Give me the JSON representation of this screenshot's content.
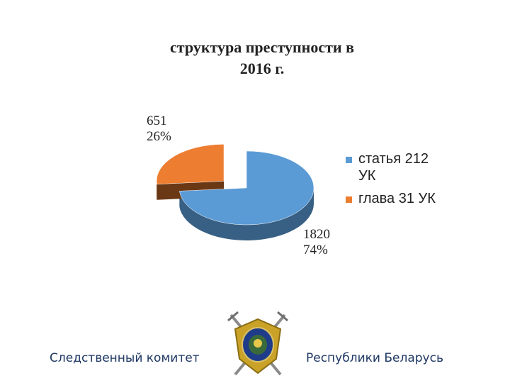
{
  "chart_data": {
    "type": "pie",
    "title": "структура преступности в\n2016 г.",
    "style": "3d-exploded",
    "series": [
      {
        "name": "статья 212 УК",
        "value": 1820,
        "percent": 74,
        "color": "#5b9bd5",
        "label_value": "1820",
        "label_percent": "74%"
      },
      {
        "name": "глава 31 УК",
        "value": 651,
        "percent": 26,
        "color": "#ed7d31",
        "label_value": "651",
        "label_percent": "26%"
      }
    ],
    "legend_position": "right"
  },
  "legend": {
    "items": [
      {
        "label": "статья 212\nУК",
        "color": "#5b9bd5"
      },
      {
        "label": "глава 31 УК",
        "color": "#ed7d31"
      }
    ]
  },
  "footer": {
    "left_text": "Следственный комитет",
    "right_text": "Республики Беларусь"
  }
}
